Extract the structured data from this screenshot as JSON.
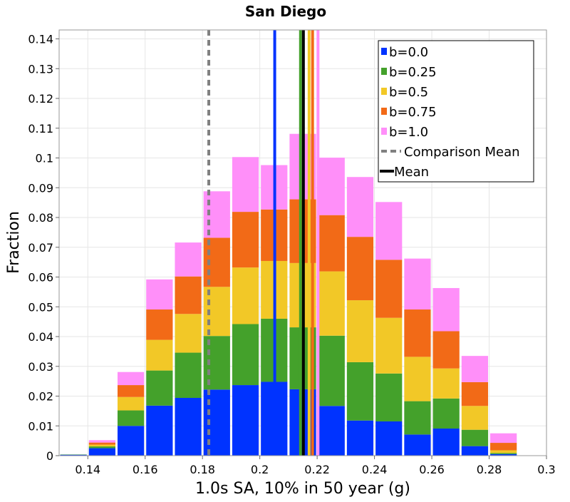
{
  "chart_data": {
    "type": "bar",
    "stacked": true,
    "title": "San Diego",
    "xlabel": "1.0s SA, 10% in 50 year (g)",
    "ylabel": "Fraction",
    "xlim": [
      0.13,
      0.3
    ],
    "ylim": [
      0,
      0.143
    ],
    "grid": true,
    "legend_position": "top-right",
    "bin_width": 0.01,
    "bin_centers": [
      0.135,
      0.145,
      0.155,
      0.165,
      0.175,
      0.185,
      0.195,
      0.205,
      0.215,
      0.225,
      0.235,
      0.245,
      0.255,
      0.265,
      0.275,
      0.285,
      0.295
    ],
    "x_ticks": [
      "0.14",
      "0.16",
      "0.18",
      "0.2",
      "0.22",
      "0.24",
      "0.26",
      "0.28",
      "0.3"
    ],
    "x_tick_values": [
      0.14,
      0.16,
      0.18,
      0.2,
      0.22,
      0.24,
      0.26,
      0.28,
      0.3
    ],
    "y_ticks": [
      "0",
      "0.01",
      "0.02",
      "0.03",
      "0.04",
      "0.05",
      "0.06",
      "0.07",
      "0.08",
      "0.09",
      "0.1",
      "0.11",
      "0.12",
      "0.13",
      "0.14"
    ],
    "y_tick_values": [
      0,
      0.01,
      0.02,
      0.03,
      0.04,
      0.05,
      0.06,
      0.07,
      0.08,
      0.09,
      0.1,
      0.11,
      0.12,
      0.13,
      0.14
    ],
    "series": [
      {
        "name": "b=0.0",
        "color": "#0033ff",
        "values": [
          0.0003,
          0.0025,
          0.01,
          0.0168,
          0.0194,
          0.0222,
          0.0237,
          0.0248,
          0.0223,
          0.0167,
          0.0118,
          0.0115,
          0.0071,
          0.0091,
          0.0032,
          0.0005,
          0.0001
        ]
      },
      {
        "name": "b=0.25",
        "color": "#44a12b",
        "values": [
          0.0001,
          0.0006,
          0.0052,
          0.0118,
          0.0152,
          0.018,
          0.0205,
          0.0212,
          0.0208,
          0.0236,
          0.0196,
          0.0161,
          0.0112,
          0.0101,
          0.0055,
          0.0004,
          0.0
        ]
      },
      {
        "name": "b=0.5",
        "color": "#f2c827",
        "values": [
          0.0,
          0.0006,
          0.0045,
          0.0103,
          0.013,
          0.0165,
          0.019,
          0.0194,
          0.0216,
          0.0216,
          0.0208,
          0.0187,
          0.0149,
          0.0101,
          0.008,
          0.0009,
          0.0
        ]
      },
      {
        "name": "b=0.75",
        "color": "#f26a17",
        "values": [
          0.0,
          0.0007,
          0.004,
          0.0102,
          0.0126,
          0.0165,
          0.0187,
          0.0173,
          0.0214,
          0.0189,
          0.0213,
          0.0195,
          0.0159,
          0.0125,
          0.008,
          0.0025,
          0.0
        ]
      },
      {
        "name": "b=1.0",
        "color": "#ff8ff9",
        "values": [
          0.0,
          0.0008,
          0.0044,
          0.0101,
          0.0114,
          0.0156,
          0.0184,
          0.0149,
          0.022,
          0.0193,
          0.0201,
          0.0194,
          0.0171,
          0.0145,
          0.0088,
          0.0032,
          0.0
        ]
      }
    ],
    "mean_lines": [
      {
        "name": "b=0.0",
        "x": 0.2052,
        "color": "#0033ff",
        "style": "solid"
      },
      {
        "name": "b=0.25",
        "x": 0.2142,
        "color": "#44a12b",
        "style": "solid"
      },
      {
        "name": "b=0.5",
        "x": 0.2172,
        "color": "#f2c827",
        "style": "solid"
      },
      {
        "name": "b=0.75",
        "x": 0.2184,
        "color": "#f26a17",
        "style": "solid"
      },
      {
        "name": "b=1.0",
        "x": 0.2203,
        "color": "#ff8ff9",
        "style": "solid"
      },
      {
        "name": "Comparison Mean",
        "x": 0.1822,
        "color": "#808080",
        "style": "dashed"
      },
      {
        "name": "Mean",
        "x": 0.2152,
        "color": "#000000",
        "style": "solid"
      }
    ],
    "legend": [
      {
        "label": "b=0.0",
        "color": "#0033ff",
        "kind": "box"
      },
      {
        "label": "b=0.25",
        "color": "#44a12b",
        "kind": "box"
      },
      {
        "label": "b=0.5",
        "color": "#f2c827",
        "kind": "box"
      },
      {
        "label": "b=0.75",
        "color": "#f26a17",
        "kind": "box"
      },
      {
        "label": "b=1.0",
        "color": "#ff8ff9",
        "kind": "box"
      },
      {
        "label": "Comparison Mean",
        "color": "#808080",
        "kind": "dashed-line"
      },
      {
        "label": "Mean",
        "color": "#000000",
        "kind": "line"
      }
    ]
  }
}
